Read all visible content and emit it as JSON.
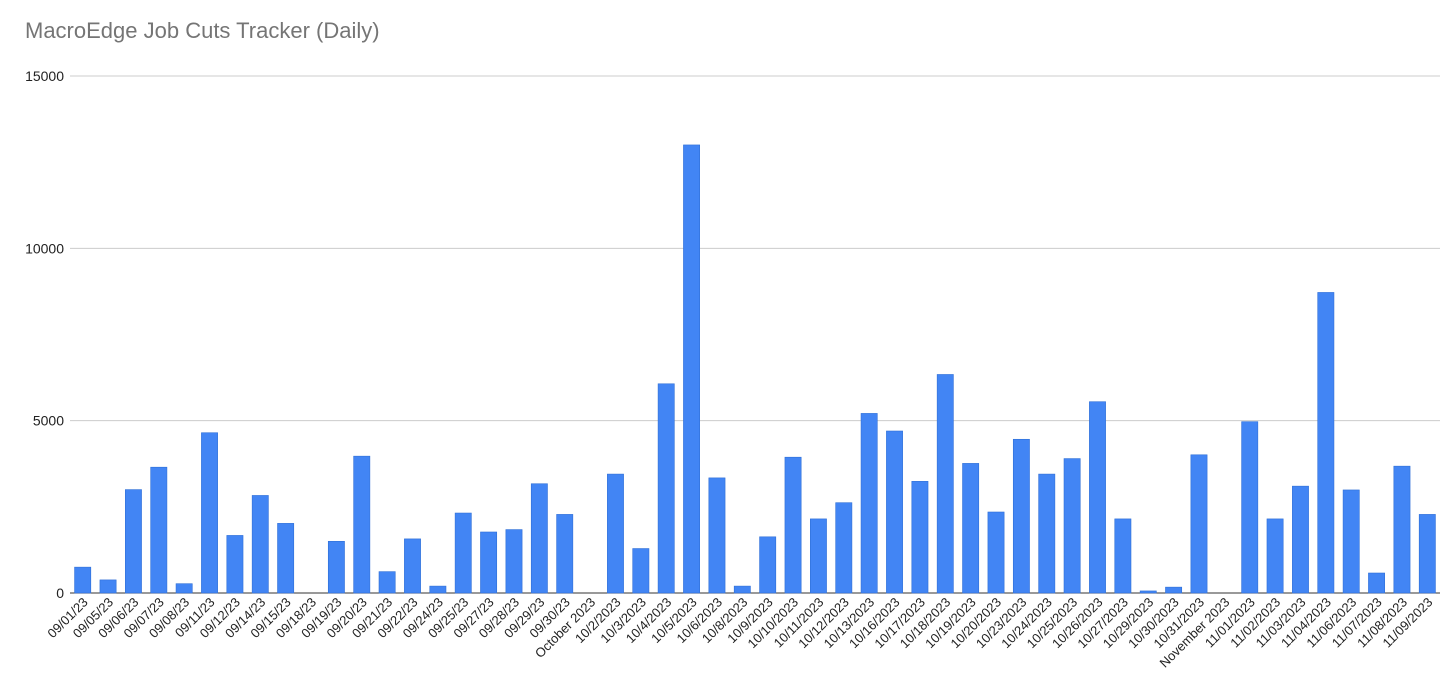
{
  "chart_data": {
    "type": "bar",
    "title": "MacroEdge Job Cuts Tracker (Daily)",
    "xlabel": "",
    "ylabel": "",
    "ylim": [
      0,
      15000
    ],
    "yticks": [
      "0",
      "5000",
      "10000",
      "15000"
    ],
    "grid": true,
    "legend": "none",
    "bar_color": "#4285f4",
    "categories": [
      "09/01/23",
      "09/05/23",
      "09/06/23",
      "09/07/23",
      "09/08/23",
      "09/11/23",
      "09/12/23",
      "09/14/23",
      "09/15/23",
      "09/18/23",
      "09/19/23",
      "09/20/23",
      "09/21/23",
      "09/22/23",
      "09/24/23",
      "09/25/23",
      "09/27/23",
      "09/28/23",
      "09/29/23",
      "09/30/23",
      "October 2023",
      "10/2/2023",
      "10/3/2023",
      "10/4/2023",
      "10/5/2023",
      "10/6/2023",
      "10/8/2023",
      "10/9/2023",
      "10/10/2023",
      "10/11/2023",
      "10/12/2023",
      "10/13/2023",
      "10/16/2023",
      "10/17/2023",
      "10/18/2023",
      "10/19/2023",
      "10/20/2023",
      "10/23/2023",
      "10/24/2023",
      "10/25/2023",
      "10/26/2023",
      "10/27/2023",
      "10/29/2023",
      "10/30/2023",
      "10/31/2023",
      "November 2023",
      "11/01/2023",
      "11/02/2023",
      "11/03/2023",
      "11/04/2023",
      "11/06/2023",
      "11/07/2023",
      "11/08/2023",
      "11/09/2023"
    ],
    "values": [
      750,
      380,
      3000,
      3650,
      270,
      4650,
      1670,
      2830,
      2020,
      0,
      1500,
      3970,
      620,
      1570,
      200,
      2320,
      1770,
      1840,
      3170,
      2280,
      0,
      3450,
      1290,
      6070,
      13000,
      3340,
      200,
      1630,
      3940,
      2150,
      2620,
      5210,
      4700,
      3240,
      6340,
      3760,
      2350,
      4460,
      3450,
      3900,
      5550,
      2150,
      60,
      170,
      4010,
      0,
      4970,
      2150,
      3100,
      8720,
      2990,
      580,
      3680,
      2280
    ]
  }
}
